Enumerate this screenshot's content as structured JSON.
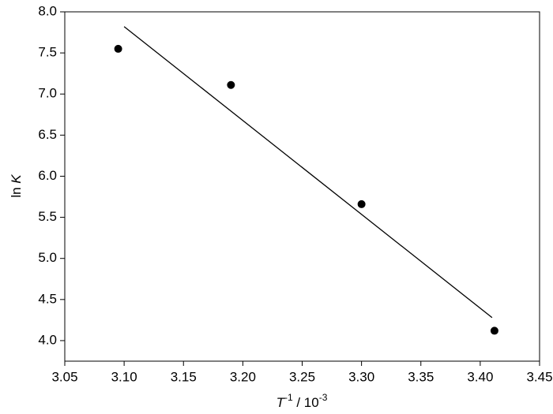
{
  "chart_data": {
    "type": "scatter",
    "ylabel": {
      "prefix": "ln ",
      "var": "K"
    },
    "xlabel": {
      "var": "T",
      "sup1": "-1",
      "mid": " / 10",
      "sup2": "-3"
    },
    "series": [
      {
        "color": "#000000",
        "x": [
          3.095,
          3.19,
          3.3,
          3.412
        ],
        "values": [
          7.55,
          7.11,
          5.66,
          4.12
        ]
      }
    ],
    "fit": {
      "color": "#000000",
      "x": [
        3.1,
        3.41
      ],
      "values": [
        7.82,
        4.28
      ]
    },
    "xlim": [
      3.05,
      3.45
    ],
    "xticks": [
      {
        "value": 3.05,
        "label": "3.05"
      },
      {
        "value": 3.1,
        "label": "3.10"
      },
      {
        "value": 3.15,
        "label": "3.15"
      },
      {
        "value": 3.2,
        "label": "3.20"
      },
      {
        "value": 3.25,
        "label": "3.25"
      },
      {
        "value": 3.3,
        "label": "3.30"
      },
      {
        "value": 3.35,
        "label": "3.35"
      },
      {
        "value": 3.4,
        "label": "3.40"
      },
      {
        "value": 3.45,
        "label": "3.45"
      }
    ],
    "ylim": [
      3.75,
      8.0
    ],
    "yticks": [
      {
        "value": 4.0,
        "label": "4.0"
      },
      {
        "value": 4.5,
        "label": "4.5"
      },
      {
        "value": 5.0,
        "label": "5.0"
      },
      {
        "value": 5.5,
        "label": "5.5"
      },
      {
        "value": 6.0,
        "label": "6.0"
      },
      {
        "value": 6.5,
        "label": "6.5"
      },
      {
        "value": 7.0,
        "label": "7.0"
      },
      {
        "value": 7.5,
        "label": "7.5"
      },
      {
        "value": 8.0,
        "label": "8.0"
      }
    ],
    "grid": false
  }
}
